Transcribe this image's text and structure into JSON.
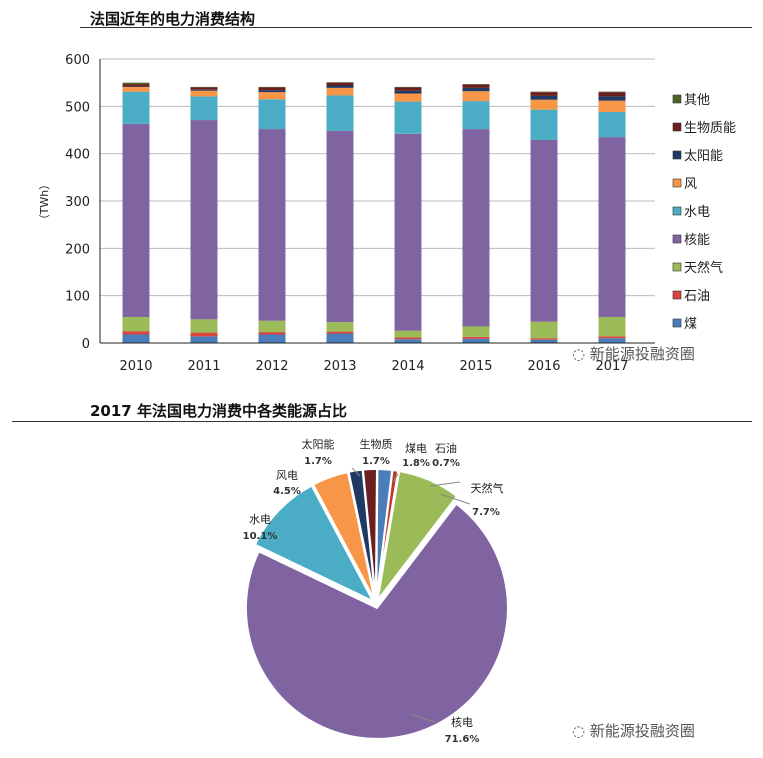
{
  "watermark": "新能源投融资圈",
  "chart_data": [
    {
      "type": "bar",
      "stacked": true,
      "title": "法国近年的电力消费结构",
      "ylabel": "（TWh）",
      "ylim": [
        0,
        600
      ],
      "yticks": [
        "0",
        "100",
        "200",
        "300",
        "400",
        "500",
        "600"
      ],
      "grid": true,
      "legend_position": "right",
      "categories": [
        "2010",
        "2011",
        "2012",
        "2013",
        "2014",
        "2015",
        "2016",
        "2017"
      ],
      "series": [
        {
          "name": "煤",
          "color": "#4a7ebb",
          "values": [
            18,
            14,
            18,
            20,
            8,
            9,
            7,
            10
          ]
        },
        {
          "name": "石油",
          "color": "#d9453a",
          "values": [
            7,
            8,
            5,
            4,
            4,
            4,
            3,
            4
          ]
        },
        {
          "name": "天然气",
          "color": "#9bbb59",
          "values": [
            30,
            28,
            24,
            20,
            14,
            22,
            35,
            41
          ]
        },
        {
          "name": "核能",
          "color": "#8064a2",
          "values": [
            408,
            421,
            405,
            404,
            416,
            417,
            384,
            380
          ]
        },
        {
          "name": "水电",
          "color": "#4bacc6",
          "values": [
            68,
            50,
            63,
            75,
            68,
            59,
            64,
            53
          ]
        },
        {
          "name": "风",
          "color": "#f79646",
          "values": [
            10,
            12,
            15,
            16,
            17,
            21,
            21,
            24
          ]
        },
        {
          "name": "太阳能",
          "color": "#1f3864",
          "values": [
            1,
            2,
            4,
            5,
            6,
            7,
            8,
            9
          ]
        },
        {
          "name": "生物质能",
          "color": "#6b1f1f",
          "values": [
            5,
            5,
            6,
            6,
            7,
            7,
            8,
            9
          ]
        },
        {
          "name": "其他",
          "color": "#4f6228",
          "values": [
            3,
            1,
            1,
            1,
            1,
            1,
            1,
            1
          ]
        }
      ]
    },
    {
      "type": "pie",
      "title": "2017 年法国电力消费中各类能源占比",
      "slices": [
        {
          "name": "煤电",
          "value": 1.8,
          "label": "1.8%",
          "color": "#4a7ebb"
        },
        {
          "name": "石油",
          "value": 0.7,
          "label": "0.7%",
          "color": "#c0392b"
        },
        {
          "name": "天然气",
          "value": 7.7,
          "label": "7.7%",
          "color": "#9bbb59"
        },
        {
          "name": "核电",
          "value": 71.6,
          "label": "71.6%",
          "color": "#8064a2"
        },
        {
          "name": "水电",
          "value": 10.1,
          "label": "10.1%",
          "color": "#4bacc6"
        },
        {
          "name": "风电",
          "value": 4.5,
          "label": "4.5%",
          "color": "#f79646"
        },
        {
          "name": "太阳能",
          "value": 1.7,
          "label": "1.7%",
          "color": "#1f3864"
        },
        {
          "name": "生物质",
          "value": 1.7,
          "label": "1.7%",
          "color": "#6b1f1f"
        }
      ]
    }
  ]
}
